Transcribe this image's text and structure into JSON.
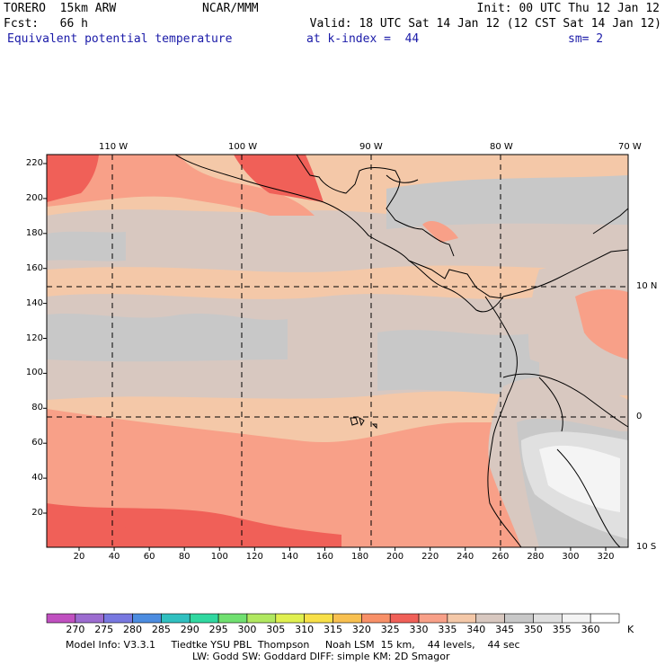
{
  "header": {
    "model": "TORERO  15km ARW",
    "org": "NCAR/MMM",
    "init": "Init: 00 UTC Thu 12 Jan 12",
    "fcst": "Fcst:   66 h",
    "valid": "Valid: 18 UTC Sat 14 Jan 12 (12 CST Sat 14 Jan 12)",
    "field": "Equivalent potential temperature",
    "level": "at k-index =  44",
    "smooth": "sm= 2"
  },
  "map": {
    "top_lon_labels": [
      "110 W",
      "100 W",
      "90 W",
      "80 W",
      "70 W"
    ],
    "right_lat_labels": [
      "10 N",
      "0",
      "10 S"
    ],
    "y_ticks": [
      "220",
      "200",
      "180",
      "160",
      "140",
      "120",
      "100",
      "80",
      "60",
      "40",
      "20"
    ],
    "x_ticks": [
      "20",
      "40",
      "60",
      "80",
      "100",
      "120",
      "140",
      "160",
      "180",
      "200",
      "220",
      "240",
      "260",
      "280",
      "300",
      "320"
    ],
    "grid": "dashed"
  },
  "colorbar": {
    "labels": [
      "270",
      "275",
      "280",
      "285",
      "290",
      "295",
      "300",
      "305",
      "310",
      "315",
      "320",
      "325",
      "330",
      "335",
      "340",
      "345",
      "350",
      "355",
      "360"
    ],
    "unit": "K",
    "colors": [
      "#c050c0",
      "#9c6cd0",
      "#7878e0",
      "#4c8ce0",
      "#30c0c0",
      "#30d8a0",
      "#70e070",
      "#b0e860",
      "#e0f050",
      "#f8e048",
      "#f8c050",
      "#f89068",
      "#f06058",
      "#f8a088",
      "#f4c8a8",
      "#d8c8c0",
      "#c8c8c8",
      "#e0e0e0",
      "#f4f4f4",
      "#ffffff"
    ]
  },
  "footer": {
    "line1": "Model Info: V3.3.1     Tiedtke YSU PBL  Thompson     Noah LSM  15 km,    44 levels,    44 sec",
    "line2": "LW: Godd SW: Goddard DIFF: simple KM: 2D Smagor"
  }
}
